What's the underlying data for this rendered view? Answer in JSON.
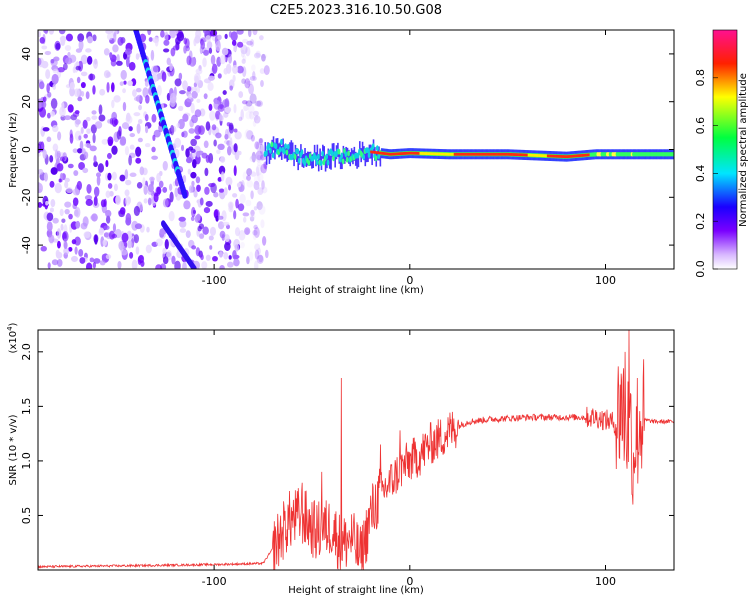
{
  "title": "C2E5.2023.316.10.50.G08",
  "chart_data": [
    {
      "type": "heatmap",
      "name": "spectrogram",
      "xlabel": "Height of straight line (km)",
      "ylabel": "Frequency (Hz)",
      "xlim": [
        -190,
        135
      ],
      "ylim": [
        -50,
        50
      ],
      "xticks": [
        -100,
        0,
        100
      ],
      "xtick_labels": [
        "-100",
        "0",
        "100"
      ],
      "yticks": [
        -40,
        -20,
        0,
        20,
        40
      ],
      "ytick_labels": [
        "-40",
        "-20",
        "0",
        "20",
        "40"
      ],
      "noise_region_x": [
        -190,
        -73
      ],
      "diagonal_line": {
        "x": [
          -140,
          -115
        ],
        "y": [
          50,
          -19
        ],
        "x2": [
          -126,
          -110
        ],
        "y2": [
          -31,
          -50
        ]
      },
      "ridge": [
        {
          "x": -73,
          "y": -1
        },
        {
          "x": -65,
          "y": 1
        },
        {
          "x": -58,
          "y": -3
        },
        {
          "x": -50,
          "y": -4
        },
        {
          "x": -40,
          "y": -3
        },
        {
          "x": -30,
          "y": -3
        },
        {
          "x": -20,
          "y": -1
        },
        {
          "x": -10,
          "y": -2
        },
        {
          "x": 0,
          "y": -1.5
        },
        {
          "x": 20,
          "y": -2
        },
        {
          "x": 50,
          "y": -2
        },
        {
          "x": 80,
          "y": -3
        },
        {
          "x": 95,
          "y": -2
        },
        {
          "x": 110,
          "y": -2
        },
        {
          "x": 135,
          "y": -2
        }
      ],
      "colorbar": {
        "label": "Normalized spectral amplitude",
        "ticks": [
          0.0,
          0.2,
          0.4,
          0.6,
          0.8
        ],
        "tick_labels": [
          "0.0",
          "0.2",
          "0.4",
          "0.6",
          "0.8"
        ],
        "range": [
          0,
          1
        ],
        "colors": [
          "#ffffff",
          "#8a00ff",
          "#1a00ff",
          "#00ffff",
          "#00ff40",
          "#ffff00",
          "#ff0000",
          "#ff00aa"
        ]
      }
    },
    {
      "type": "line",
      "name": "snr",
      "xlabel": "Height of straight line (km)",
      "ylabel": "SNR (10 * v/v)",
      "multiplier": "(x10",
      "multiplier_exp": "4",
      "multiplier_close": ")",
      "xlim": [
        -190,
        135
      ],
      "ylim": [
        0,
        2.2
      ],
      "xticks": [
        -100,
        0,
        100
      ],
      "xtick_labels": [
        "-100",
        "0",
        "100"
      ],
      "yticks": [
        0.5,
        1.0,
        1.5,
        2.0
      ],
      "ytick_labels": [
        "0.5",
        "1.0",
        "1.5",
        "2.0"
      ],
      "color": "#ee3333",
      "series": [
        {
          "name": "SNR",
          "x": [
            -190,
            -140,
            -100,
            -75,
            -68,
            -62,
            -55,
            -48,
            -40,
            -35,
            -30,
            -25,
            -20,
            -15,
            -10,
            -5,
            0,
            5,
            10,
            15,
            20,
            25,
            30,
            40,
            60,
            80,
            95,
            105,
            108,
            112,
            115,
            118,
            125,
            135
          ],
          "values": [
            0.03,
            0.04,
            0.05,
            0.06,
            0.25,
            0.45,
            0.5,
            0.35,
            0.4,
            0.22,
            0.3,
            0.12,
            0.5,
            0.7,
            0.8,
            0.92,
            1.0,
            1.05,
            1.15,
            1.2,
            1.27,
            1.32,
            1.36,
            1.38,
            1.4,
            1.4,
            1.4,
            1.35,
            1.5,
            1.3,
            1.2,
            1.38,
            1.36,
            1.36
          ]
        }
      ]
    }
  ]
}
